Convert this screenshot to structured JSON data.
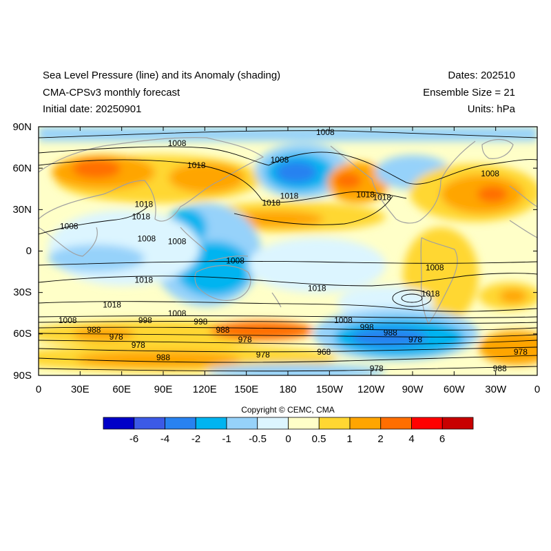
{
  "header": {
    "title": "Sea Level Pressure (line) and its Anomaly (shading)",
    "model": "CMA-CPSv3 monthly forecast",
    "initial_date": "Initial date: 20250901",
    "dates": "Dates: 202510",
    "ensemble": "Ensemble Size = 21",
    "units": "Units: hPa"
  },
  "map": {
    "projection": "equirectangular",
    "lon_range": [
      0,
      360
    ],
    "lat_range": [
      -90,
      90
    ],
    "lon_ticks": [
      "0",
      "30E",
      "60E",
      "90E",
      "120E",
      "150E",
      "180",
      "150W",
      "120W",
      "90W",
      "60W",
      "30W",
      "0"
    ],
    "lat_ticks": [
      "90N",
      "60N",
      "30N",
      "0",
      "30S",
      "60S",
      "90S"
    ],
    "coastline_color": "#a0a0a0",
    "contour_color": "#000000",
    "contour_labels": [
      {
        "text": "1008",
        "lon": 207,
        "lat": 86
      },
      {
        "text": "1008",
        "lon": 100,
        "lat": 78
      },
      {
        "text": "1008",
        "lon": 174,
        "lat": 66
      },
      {
        "text": "1018",
        "lon": 114,
        "lat": 62
      },
      {
        "text": "1018",
        "lon": 181,
        "lat": 40
      },
      {
        "text": "1018",
        "lon": 168,
        "lat": 35
      },
      {
        "text": "1018",
        "lon": 248,
        "lat": 39
      },
      {
        "text": "1018",
        "lon": 236,
        "lat": 41
      },
      {
        "text": "1008",
        "lon": 326,
        "lat": 56
      },
      {
        "text": "1018",
        "lon": 76,
        "lat": 34
      },
      {
        "text": "1018",
        "lon": 74,
        "lat": 25
      },
      {
        "text": "1008",
        "lon": 22,
        "lat": 18
      },
      {
        "text": "1008",
        "lon": 78,
        "lat": 9
      },
      {
        "text": "1008",
        "lon": 100,
        "lat": 7
      },
      {
        "text": "1008",
        "lon": 142,
        "lat": -7
      },
      {
        "text": "1008",
        "lon": 286,
        "lat": -12
      },
      {
        "text": "1018",
        "lon": 76,
        "lat": -21
      },
      {
        "text": "1018",
        "lon": 201,
        "lat": -27
      },
      {
        "text": "1018",
        "lon": 283,
        "lat": -31
      },
      {
        "text": "1018",
        "lon": 53,
        "lat": -39
      },
      {
        "text": "1008",
        "lon": 21,
        "lat": -50
      },
      {
        "text": "1008",
        "lon": 100,
        "lat": -45
      },
      {
        "text": "998",
        "lon": 77,
        "lat": -50
      },
      {
        "text": "998",
        "lon": 117,
        "lat": -51
      },
      {
        "text": "1008",
        "lon": 220,
        "lat": -50
      },
      {
        "text": "998",
        "lon": 237,
        "lat": -55
      },
      {
        "text": "988",
        "lon": 40,
        "lat": -57
      },
      {
        "text": "988",
        "lon": 133,
        "lat": -57
      },
      {
        "text": "988",
        "lon": 254,
        "lat": -59
      },
      {
        "text": "978",
        "lon": 56,
        "lat": -62
      },
      {
        "text": "978",
        "lon": 149,
        "lat": -64
      },
      {
        "text": "978",
        "lon": 272,
        "lat": -64
      },
      {
        "text": "978",
        "lon": 72,
        "lat": -68
      },
      {
        "text": "978",
        "lon": 162,
        "lat": -75
      },
      {
        "text": "978",
        "lon": 348,
        "lat": -73
      },
      {
        "text": "968",
        "lon": 206,
        "lat": -73
      },
      {
        "text": "988",
        "lon": 90,
        "lat": -77
      },
      {
        "text": "978",
        "lon": 244,
        "lat": -85
      },
      {
        "text": "988",
        "lon": 333,
        "lat": -85
      }
    ]
  },
  "colorbar": {
    "copyright": "Copyright © CEMC, CMA",
    "colors": [
      "#0000c8",
      "#3c5ae6",
      "#2882f0",
      "#00b4f0",
      "#96d2fa",
      "#dcf5ff",
      "#ffffc8",
      "#ffd732",
      "#ffa500",
      "#ff6e00",
      "#ff0000",
      "#c80000"
    ],
    "tick_labels": [
      "-6",
      "-4",
      "-2",
      "-1",
      "-0.5",
      "0",
      "0.5",
      "1",
      "2",
      "4",
      "6"
    ]
  }
}
